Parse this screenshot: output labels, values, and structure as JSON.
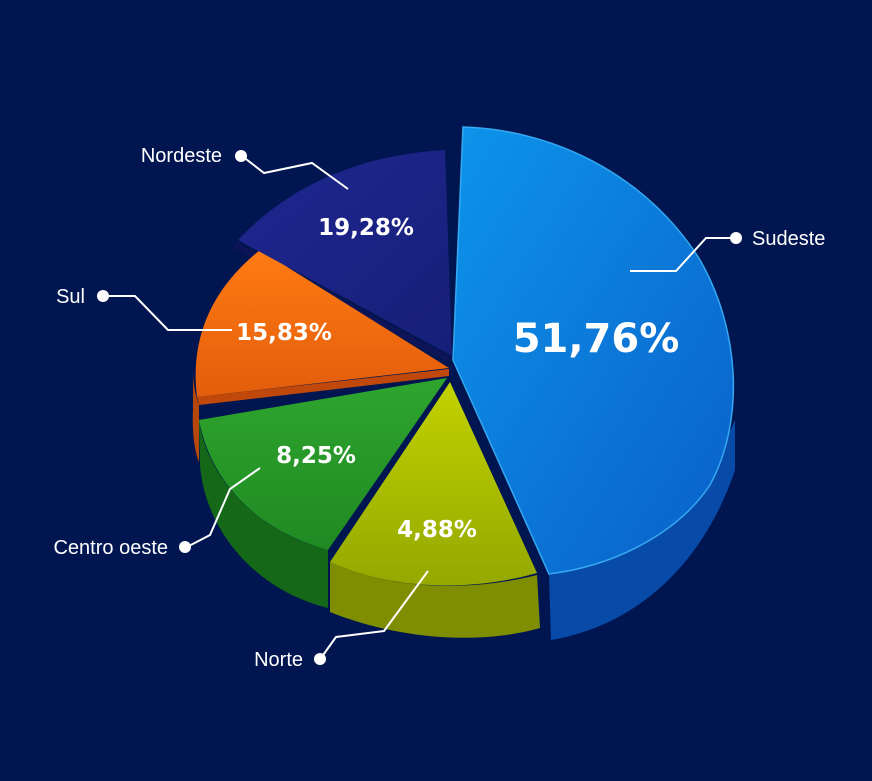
{
  "chart_data": {
    "type": "pie",
    "slices": [
      {
        "label": "Sudeste",
        "value": 51.76,
        "value_label": "51,76%",
        "color": "#0a7fe0"
      },
      {
        "label": "Norte",
        "value": 4.88,
        "value_label": "4,88%",
        "color": "#a4b800"
      },
      {
        "label": "Centro oeste",
        "value": 8.25,
        "value_label": "8,25%",
        "color": "#2a9a2a"
      },
      {
        "label": "Sul",
        "value": 15.83,
        "value_label": "15,83%",
        "color": "#f06a10"
      },
      {
        "label": "Nordeste",
        "value": 19.28,
        "value_label": "19,28%",
        "color": "#22288a"
      }
    ],
    "background": "#011650"
  }
}
